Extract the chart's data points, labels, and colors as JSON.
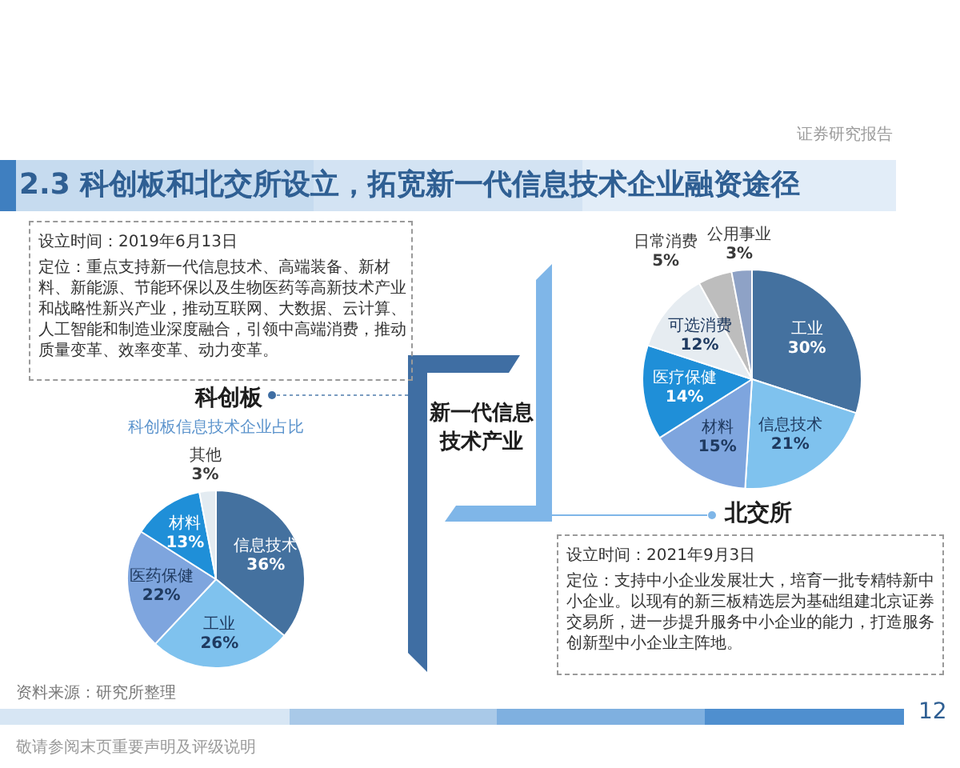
{
  "chart_data": [
    {
      "type": "other",
      "title": "2.3 科创板和北交所设立，拓宽新一代信息技术企业融资途径",
      "annotations": [
        "证券研究报告",
        "新一代信息技术产业",
        "资料来源：研究所整理",
        "敬请参阅末页重要声明及评级说明",
        "12"
      ]
    },
    {
      "type": "pie",
      "title": "科创板",
      "subtitle": "科创板信息技术企业占比",
      "categories": [
        "信息技术",
        "工业",
        "医药保健",
        "材料",
        "其他"
      ],
      "values": [
        36,
        26,
        22,
        13,
        3
      ],
      "colors": [
        "#44719f",
        "#7fc2ee",
        "#7ea5de",
        "#1f8fd8",
        "#e3ebf1"
      ],
      "value_labels": [
        "36%",
        "26%",
        "22%",
        "13%",
        "3%"
      ],
      "legend": false,
      "annotations": [
        "设立时间：2019年6月13日",
        "定位：重点支持新一代信息技术、高端装备、新材料、新能源、节能环保以及生物医药等高新技术产业和战略性新兴产业，推动互联网、大数据、云计算、人工智能和制造业深度融合，引领中高端消费，推动质量变革、效率变革、动力变革。"
      ]
    },
    {
      "type": "pie",
      "title": "北交所",
      "categories": [
        "工业",
        "信息技术",
        "材料",
        "医疗保健",
        "可选消费",
        "日常消费",
        "公用事业"
      ],
      "values": [
        30,
        21,
        15,
        14,
        12,
        5,
        3
      ],
      "colors": [
        "#44719f",
        "#7fc2ee",
        "#7ea5de",
        "#1f8fd8",
        "#e6ecf1",
        "#bdbdbd",
        "#8ea2c6"
      ],
      "value_labels": [
        "30%",
        "21%",
        "15%",
        "14%",
        "12%",
        "5%",
        "3%"
      ],
      "legend": false,
      "annotations": [
        "设立时间：2021年9月3日",
        "定位：支持中小企业发展壮大，培育一批专精特新中小企业。以现有的新三板精选层为基础组建北京证券交易所，进一步提升服务中小企业的能力，打造服务创新型中小企业主阵地。"
      ]
    }
  ]
}
